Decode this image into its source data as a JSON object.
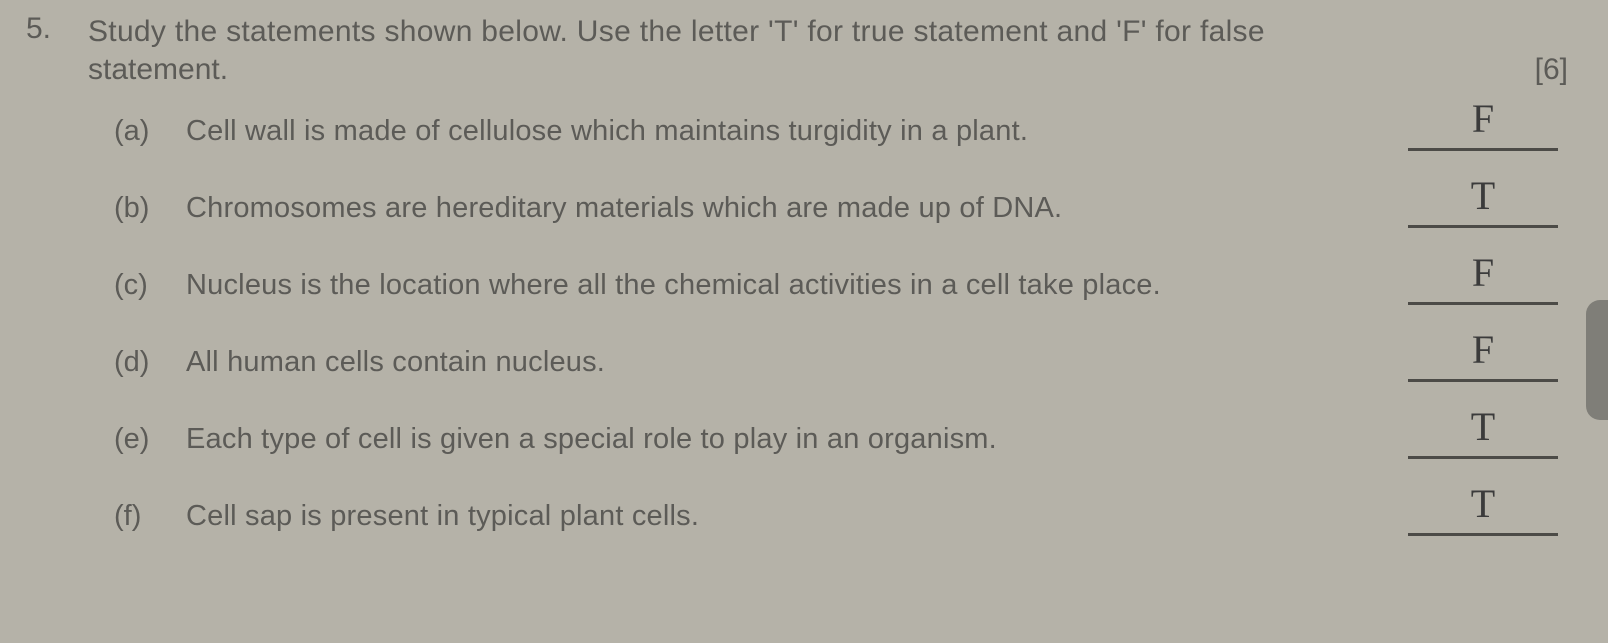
{
  "colors": {
    "paper_bg": "#b5b2a8",
    "print_text": "#5c5b57",
    "underline": "#4c4b47",
    "handwriting": "#3b3b3b"
  },
  "typography": {
    "print_fontsize_pt": 22,
    "hand_fontsize_pt": 30
  },
  "question": {
    "number": "5.",
    "text_line1": "Study the statements shown below. Use the letter 'T' for true statement and 'F' for false",
    "text_line2": "statement.",
    "marks": "[6]"
  },
  "items": [
    {
      "letter": "(a)",
      "text": "Cell wall is made of cellulose which maintains turgidity in a plant.",
      "answer": "F"
    },
    {
      "letter": "(b)",
      "text": "Chromosomes are hereditary materials which are made up of DNA.",
      "answer": "T"
    },
    {
      "letter": "(c)",
      "text": "Nucleus is the location where all the chemical activities in a cell take place.",
      "answer": "F"
    },
    {
      "letter": "(d)",
      "text": "All human cells contain nucleus.",
      "answer": "F"
    },
    {
      "letter": "(e)",
      "text": "Each type of cell is given a special role to play in an organism.",
      "answer": "T"
    },
    {
      "letter": "(f)",
      "text": "Cell sap is present in typical plant cells.",
      "answer": "T"
    }
  ]
}
